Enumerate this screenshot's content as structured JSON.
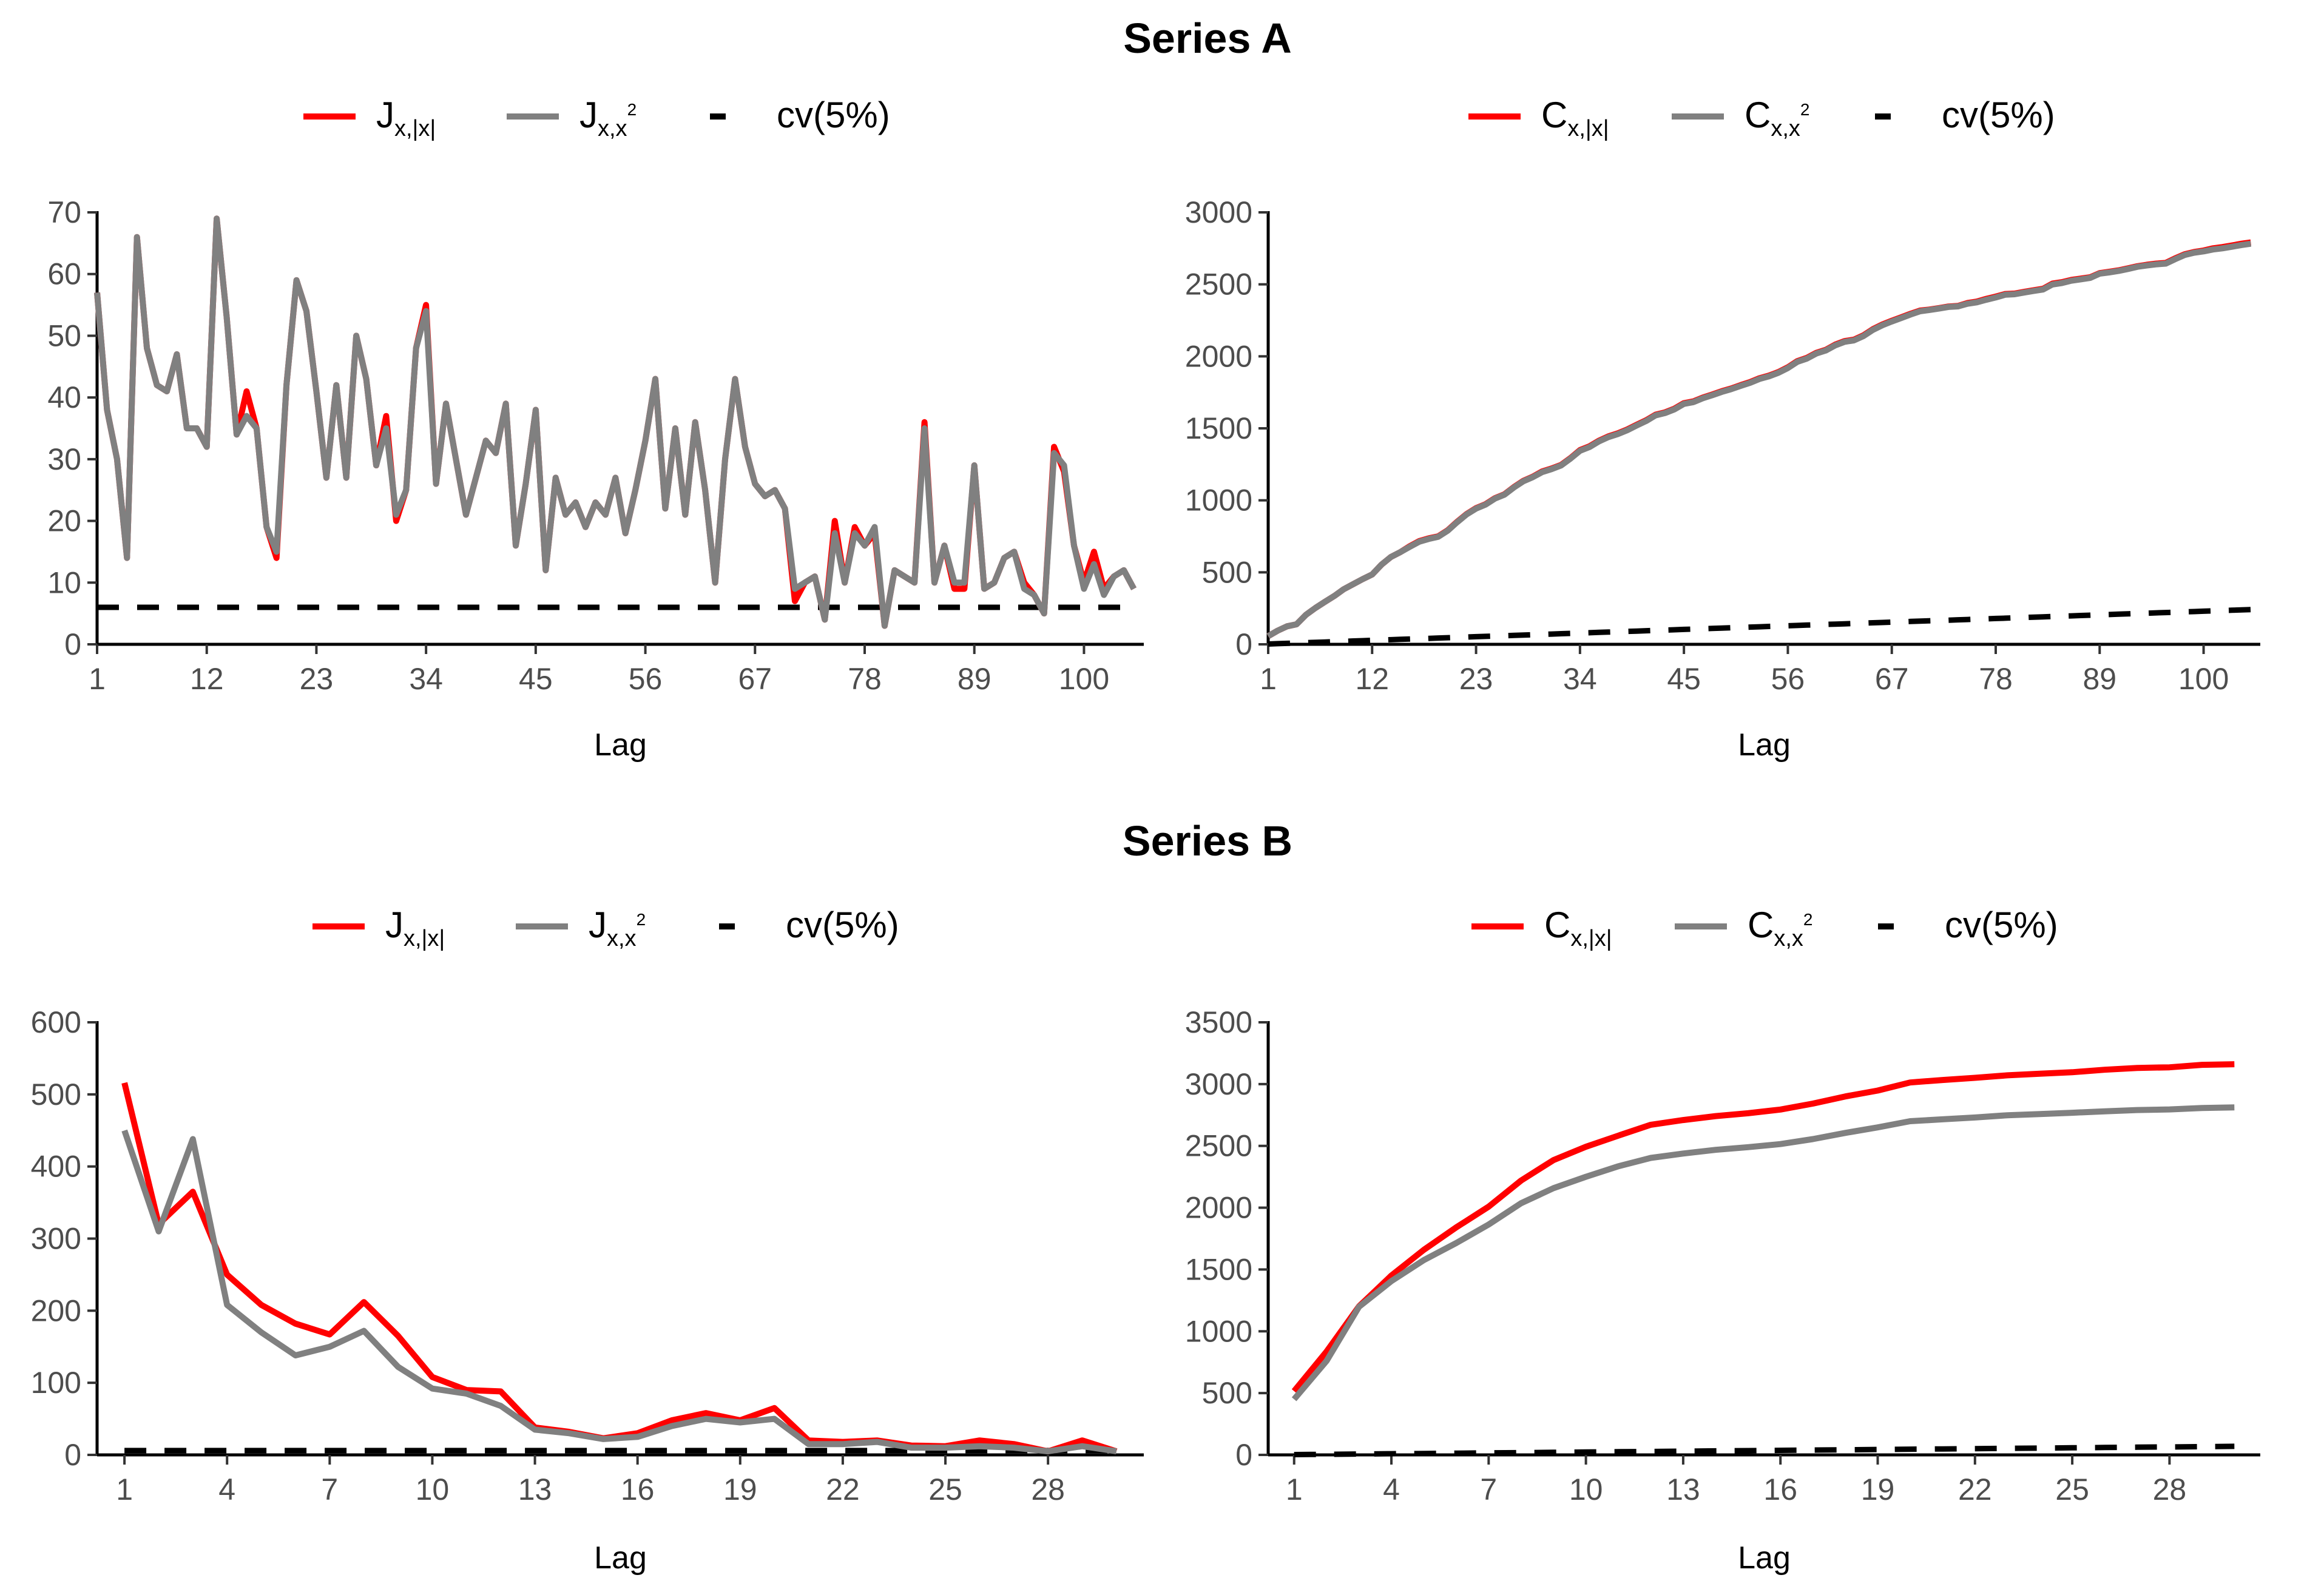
{
  "sections": [
    {
      "title": "Series A"
    },
    {
      "title": "Series B"
    }
  ],
  "colors": {
    "abs": "#ff0000",
    "sq": "#808080",
    "cv": "#000000",
    "axis": "#000000",
    "tick_text": "#4d4d4d"
  },
  "chart_data": [
    {
      "type": "line",
      "panel": "series-a-j",
      "section": "Series A",
      "xlabel": "Lag",
      "ylabel": "",
      "xlim": [
        1,
        106
      ],
      "ylim": [
        0,
        70
      ],
      "xticks": [
        1,
        12,
        23,
        34,
        45,
        56,
        67,
        78,
        89,
        100
      ],
      "yticks": [
        0,
        10,
        20,
        30,
        40,
        50,
        60,
        70
      ],
      "grid": false,
      "legend_position": "top",
      "x_start": 1,
      "series": [
        {
          "key": "abs",
          "legend_main": "J",
          "legend_sub": "x,|x|",
          "legend_sup": "",
          "color": "#ff0000",
          "dashed": false,
          "values": [
            57,
            38,
            30,
            14,
            66,
            48,
            42,
            41,
            47,
            35,
            35,
            32,
            69,
            53,
            34,
            41,
            35,
            19,
            14,
            42,
            59,
            54,
            41,
            27,
            42,
            27,
            50,
            43,
            29,
            37,
            20,
            25,
            48,
            55,
            26,
            39,
            30,
            21,
            27,
            33,
            31,
            39,
            16,
            26,
            38,
            12,
            27,
            21,
            23,
            19,
            23,
            21,
            27,
            18,
            25,
            33,
            43,
            22,
            35,
            21,
            36,
            25,
            10,
            30,
            43,
            32,
            26,
            24,
            25,
            22,
            7,
            10,
            11,
            4,
            20,
            10,
            19,
            16,
            18,
            3,
            12,
            11,
            10,
            36,
            10,
            16,
            9,
            9,
            29,
            9,
            10,
            14,
            15,
            10,
            8,
            5,
            32,
            28,
            16,
            10,
            15,
            9,
            11,
            12,
            9
          ]
        },
        {
          "key": "sq",
          "legend_main": "J",
          "legend_sub": "x,x",
          "legend_sup": "2",
          "color": "#808080",
          "dashed": false,
          "values": [
            57,
            38,
            30,
            14,
            66,
            48,
            42,
            41,
            47,
            35,
            35,
            32,
            69,
            53,
            34,
            37,
            35,
            19,
            15,
            42,
            59,
            54,
            41,
            27,
            42,
            27,
            50,
            43,
            29,
            35,
            21,
            25,
            48,
            54,
            26,
            39,
            30,
            21,
            27,
            33,
            31,
            39,
            16,
            26,
            38,
            12,
            27,
            21,
            23,
            19,
            23,
            21,
            27,
            18,
            25,
            33,
            43,
            22,
            35,
            21,
            36,
            25,
            10,
            30,
            43,
            32,
            26,
            24,
            25,
            22,
            9,
            10,
            11,
            4,
            18,
            10,
            18,
            16,
            19,
            3,
            12,
            11,
            10,
            35,
            10,
            16,
            10,
            10,
            29,
            9,
            10,
            14,
            15,
            9,
            8,
            5,
            31,
            29,
            16,
            9,
            13,
            8,
            11,
            12,
            9
          ]
        },
        {
          "key": "cv",
          "legend_main": "cv(5%)",
          "legend_sub": "",
          "legend_sup": "",
          "color": "#000000",
          "dashed": true,
          "constant": 6
        }
      ]
    },
    {
      "type": "line",
      "panel": "series-a-c",
      "section": "Series A",
      "xlabel": "Lag",
      "ylabel": "",
      "xlim": [
        1,
        106
      ],
      "ylim": [
        0,
        3000
      ],
      "xticks": [
        1,
        12,
        23,
        34,
        45,
        56,
        67,
        78,
        89,
        100
      ],
      "yticks": [
        0,
        500,
        1000,
        1500,
        2000,
        2500,
        3000
      ],
      "grid": false,
      "legend_position": "top",
      "x_start": 1,
      "series": [
        {
          "key": "abs",
          "legend_main": "C",
          "legend_sub": "x,|x|",
          "legend_sup": "",
          "color": "#ff0000",
          "dashed": false,
          "values": [
            57,
            95,
            125,
            139,
            205,
            253,
            295,
            336,
            383,
            418,
            453,
            485,
            554,
            607,
            641,
            682,
            717,
            736,
            750,
            792,
            851,
            905,
            946,
            973,
            1015,
            1042,
            1092,
            1135,
            1164,
            1201,
            1221,
            1246,
            1294,
            1349,
            1375,
            1414,
            1444,
            1465,
            1492,
            1525,
            1556,
            1595,
            1611,
            1637,
            1675,
            1687,
            1714,
            1735,
            1758,
            1777,
            1800,
            1821,
            1848,
            1866,
            1891,
            1924,
            1967,
            1989,
            2024,
            2045,
            2081,
            2106,
            2116,
            2146,
            2189,
            2221,
            2247,
            2271,
            2296,
            2318,
            2325,
            2335,
            2346,
            2350,
            2370,
            2380,
            2399,
            2415,
            2433,
            2436,
            2448,
            2459,
            2469,
            2505,
            2515,
            2531,
            2540,
            2549,
            2578,
            2587,
            2597,
            2611,
            2626,
            2636,
            2644,
            2649,
            2681,
            2709,
            2725,
            2735,
            2750,
            2759,
            2770,
            2782,
            2791
          ]
        },
        {
          "key": "sq",
          "legend_main": "C",
          "legend_sub": "x,x",
          "legend_sup": "2",
          "color": "#808080",
          "dashed": false,
          "values": [
            57,
            95,
            125,
            139,
            205,
            253,
            295,
            336,
            383,
            418,
            453,
            485,
            554,
            607,
            641,
            678,
            713,
            732,
            747,
            789,
            848,
            902,
            943,
            970,
            1012,
            1039,
            1089,
            1132,
            1161,
            1196,
            1217,
            1242,
            1290,
            1344,
            1370,
            1409,
            1439,
            1460,
            1487,
            1520,
            1551,
            1590,
            1606,
            1632,
            1670,
            1682,
            1709,
            1730,
            1753,
            1772,
            1795,
            1816,
            1843,
            1861,
            1886,
            1919,
            1962,
            1984,
            2019,
            2040,
            2076,
            2101,
            2111,
            2141,
            2184,
            2216,
            2242,
            2266,
            2291,
            2313,
            2322,
            2332,
            2343,
            2347,
            2365,
            2375,
            2393,
            2409,
            2428,
            2431,
            2443,
            2454,
            2464,
            2499,
            2509,
            2525,
            2535,
            2545,
            2574,
            2583,
            2593,
            2607,
            2622,
            2631,
            2639,
            2644,
            2675,
            2704,
            2720,
            2729,
            2742,
            2750,
            2761,
            2773,
            2782
          ]
        },
        {
          "key": "cv",
          "legend_main": "cv(5%)",
          "legend_sub": "",
          "legend_sup": "",
          "color": "#000000",
          "dashed": true,
          "multiplier": 2.3
        }
      ]
    },
    {
      "type": "line",
      "panel": "series-b-j",
      "section": "Series B",
      "xlabel": "Lag",
      "ylabel": "",
      "xlim": [
        0.2,
        30.8
      ],
      "ylim": [
        0,
        600
      ],
      "xticks": [
        1,
        4,
        7,
        10,
        13,
        16,
        19,
        22,
        25,
        28
      ],
      "yticks": [
        0,
        100,
        200,
        300,
        400,
        500,
        600
      ],
      "grid": false,
      "legend_position": "top",
      "x_start": 1,
      "series": [
        {
          "key": "abs",
          "legend_main": "J",
          "legend_sub": "x,|x|",
          "legend_sup": "",
          "color": "#ff0000",
          "dashed": false,
          "values": [
            516,
            320,
            365,
            250,
            208,
            182,
            167,
            212,
            165,
            108,
            90,
            88,
            38,
            32,
            23,
            30,
            48,
            58,
            48,
            65,
            20,
            18,
            20,
            13,
            12,
            20,
            15,
            5,
            20,
            5
          ]
        },
        {
          "key": "sq",
          "legend_main": "J",
          "legend_sub": "x,x",
          "legend_sup": "2",
          "color": "#808080",
          "dashed": false,
          "values": [
            450,
            310,
            438,
            208,
            170,
            138,
            150,
            172,
            122,
            92,
            85,
            68,
            35,
            30,
            22,
            25,
            40,
            50,
            45,
            50,
            15,
            15,
            18,
            10,
            10,
            12,
            10,
            5,
            12,
            5
          ]
        },
        {
          "key": "cv",
          "legend_main": "cv(5%)",
          "legend_sub": "",
          "legend_sup": "",
          "color": "#000000",
          "dashed": true,
          "constant": 6
        }
      ]
    },
    {
      "type": "line",
      "panel": "series-b-c",
      "section": "Series B",
      "xlabel": "Lag",
      "ylabel": "",
      "xlim": [
        0.2,
        30.8
      ],
      "ylim": [
        0,
        3500
      ],
      "xticks": [
        1,
        4,
        7,
        10,
        13,
        16,
        19,
        22,
        25,
        28
      ],
      "yticks": [
        0,
        500,
        1000,
        1500,
        2000,
        2500,
        3000,
        3500
      ],
      "grid": false,
      "legend_position": "top",
      "x_start": 1,
      "series": [
        {
          "key": "abs",
          "legend_main": "C",
          "legend_sub": "x,|x|",
          "legend_sup": "",
          "color": "#ff0000",
          "dashed": false,
          "values": [
            516,
            836,
            1201,
            1451,
            1659,
            1841,
            2008,
            2220,
            2385,
            2493,
            2583,
            2671,
            2709,
            2741,
            2764,
            2794,
            2842,
            2900,
            2948,
            3013,
            3033,
            3051,
            3071,
            3084,
            3096,
            3116,
            3131,
            3136,
            3156,
            3161
          ]
        },
        {
          "key": "sq",
          "legend_main": "C",
          "legend_sub": "x,x",
          "legend_sup": "2",
          "color": "#808080",
          "dashed": false,
          "values": [
            450,
            760,
            1198,
            1406,
            1576,
            1714,
            1864,
            2036,
            2158,
            2250,
            2335,
            2403,
            2438,
            2468,
            2490,
            2515,
            2555,
            2605,
            2650,
            2700,
            2715,
            2730,
            2748,
            2758,
            2768,
            2780,
            2790,
            2795,
            2807,
            2812
          ]
        },
        {
          "key": "cv",
          "legend_main": "cv(5%)",
          "legend_sub": "",
          "legend_sup": "",
          "color": "#000000",
          "dashed": true,
          "multiplier": 2.3
        }
      ]
    }
  ]
}
